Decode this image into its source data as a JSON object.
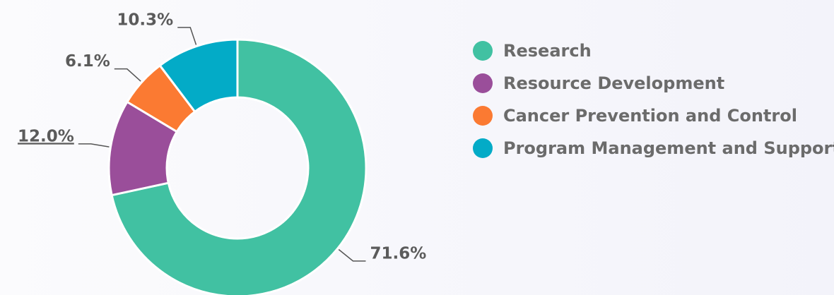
{
  "chart_data": {
    "type": "donut",
    "categories": [
      "Research",
      "Resource Development",
      "Cancer Prevention and Control",
      "Program Management and Support"
    ],
    "values": [
      71.6,
      12.0,
      6.1,
      10.3
    ],
    "value_labels": [
      "71.6%",
      "12.0%",
      "6.1%",
      "10.3%"
    ],
    "colors": [
      "#41c1a2",
      "#9a4e9a",
      "#fb7a32",
      "#03abc7"
    ],
    "legend": "right"
  }
}
